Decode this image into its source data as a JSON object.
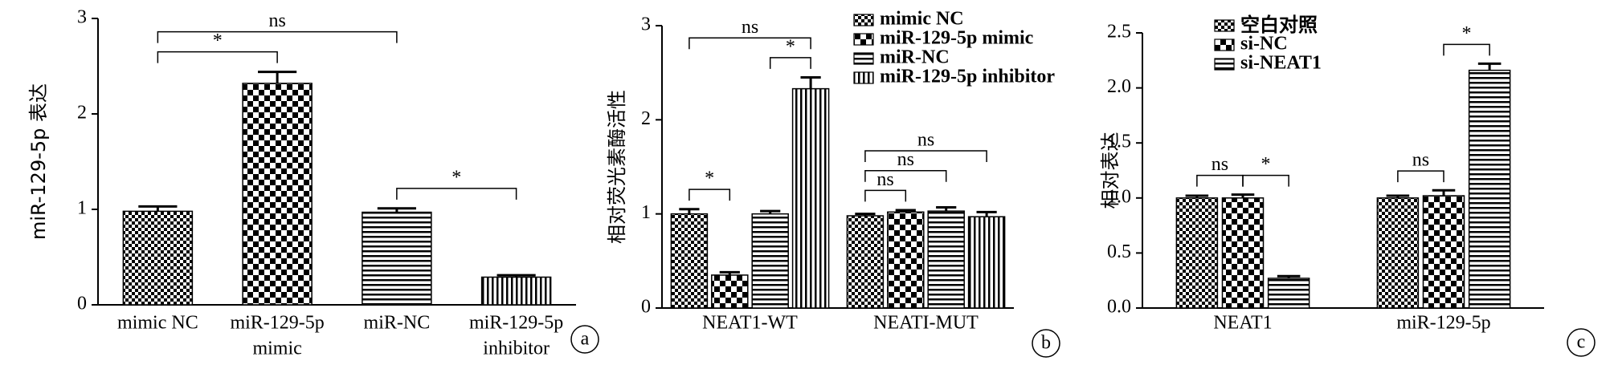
{
  "chart_data": [
    {
      "type": "bar",
      "panel_label": "a",
      "y_label": "miR-129-5p 表达",
      "categories": [
        [
          "mimic NC"
        ],
        [
          "miR-129-5p",
          "mimic"
        ],
        [
          "miR-NC"
        ],
        [
          "miR-129-5p",
          "inhibitor"
        ]
      ],
      "values": [
        0.98,
        2.32,
        0.97,
        0.29
      ],
      "errors": [
        0.05,
        0.12,
        0.04,
        0.02
      ],
      "patterns": [
        "fine-check",
        "check",
        "hlines",
        "vlines"
      ],
      "color": "#000000",
      "ylim": [
        0,
        3
      ],
      "yticks": [
        0,
        1,
        2,
        3
      ],
      "brackets": [
        {
          "from": 0,
          "to": 1,
          "label": "*"
        },
        {
          "from": 0,
          "to": 2,
          "label": "ns"
        },
        {
          "from": 2,
          "to": 3,
          "label": "*"
        }
      ]
    },
    {
      "type": "grouped-bar",
      "panel_label": "b",
      "y_label": "相对荧光素酶活性",
      "legend": "top-right",
      "categories": [
        "NEAT1-WT",
        "NEATI-MUT"
      ],
      "series": [
        {
          "name": "mimic NC",
          "pattern": "fine-check",
          "color": "#000000",
          "values": [
            1.0,
            0.98
          ],
          "errors": [
            0.05,
            0.02
          ]
        },
        {
          "name": "miR-129-5p mimic",
          "pattern": "check",
          "color": "#000000",
          "values": [
            0.35,
            1.02
          ],
          "errors": [
            0.03,
            0.02
          ]
        },
        {
          "name": "miR-NC",
          "pattern": "hlines",
          "color": "#000000",
          "values": [
            1.0,
            1.03
          ],
          "errors": [
            0.03,
            0.04
          ]
        },
        {
          "name": "miR-129-5p inhibitor",
          "pattern": "vlines",
          "color": "#000000",
          "values": [
            2.33,
            0.97
          ],
          "errors": [
            0.12,
            0.05
          ]
        }
      ],
      "ylim": [
        0,
        3
      ],
      "yticks": [
        0,
        1,
        2,
        3
      ],
      "brackets": [
        {
          "category": 0,
          "from": 0,
          "to": 1,
          "label": "*"
        },
        {
          "category": 0,
          "from": 2,
          "to": 3,
          "label": "*"
        },
        {
          "category": 0,
          "from": 0,
          "to": 3,
          "label": "ns"
        },
        {
          "category": 1,
          "from": 0,
          "to": 1,
          "label": "ns"
        },
        {
          "category": 1,
          "from": 0,
          "to": 2,
          "label": "ns"
        },
        {
          "category": 1,
          "from": 0,
          "to": 3,
          "label": "ns"
        }
      ]
    },
    {
      "type": "grouped-bar",
      "panel_label": "c",
      "y_label": "相对表达",
      "legend": "top-left",
      "categories": [
        "NEAT1",
        "miR-129-5p"
      ],
      "series": [
        {
          "name": "空白对照",
          "pattern": "fine-check",
          "color": "#000000",
          "values": [
            1.0,
            1.0
          ],
          "errors": [
            0.02,
            0.02
          ]
        },
        {
          "name": "si-NC",
          "pattern": "check",
          "color": "#000000",
          "values": [
            1.0,
            1.02
          ],
          "errors": [
            0.03,
            0.05
          ]
        },
        {
          "name": "si-NEAT1",
          "pattern": "hlines",
          "color": "#000000",
          "values": [
            0.27,
            2.16
          ],
          "errors": [
            0.02,
            0.06
          ]
        }
      ],
      "ylim": [
        0,
        2.5
      ],
      "yticks": [
        {
          "value": 0,
          "label": "0.0"
        },
        0.5,
        {
          "value": 1,
          "label": "1.0"
        },
        1.5,
        {
          "value": 2,
          "label": "2.0"
        },
        2.5
      ],
      "brackets": [
        {
          "category": 0,
          "from": 0,
          "to": 1,
          "label": "ns"
        },
        {
          "category": 0,
          "from": 1,
          "to": 2,
          "label": "*"
        },
        {
          "category": 1,
          "from": 0,
          "to": 1,
          "label": "ns"
        },
        {
          "category": 1,
          "from": 1,
          "to": 2,
          "label": "*"
        }
      ]
    }
  ]
}
